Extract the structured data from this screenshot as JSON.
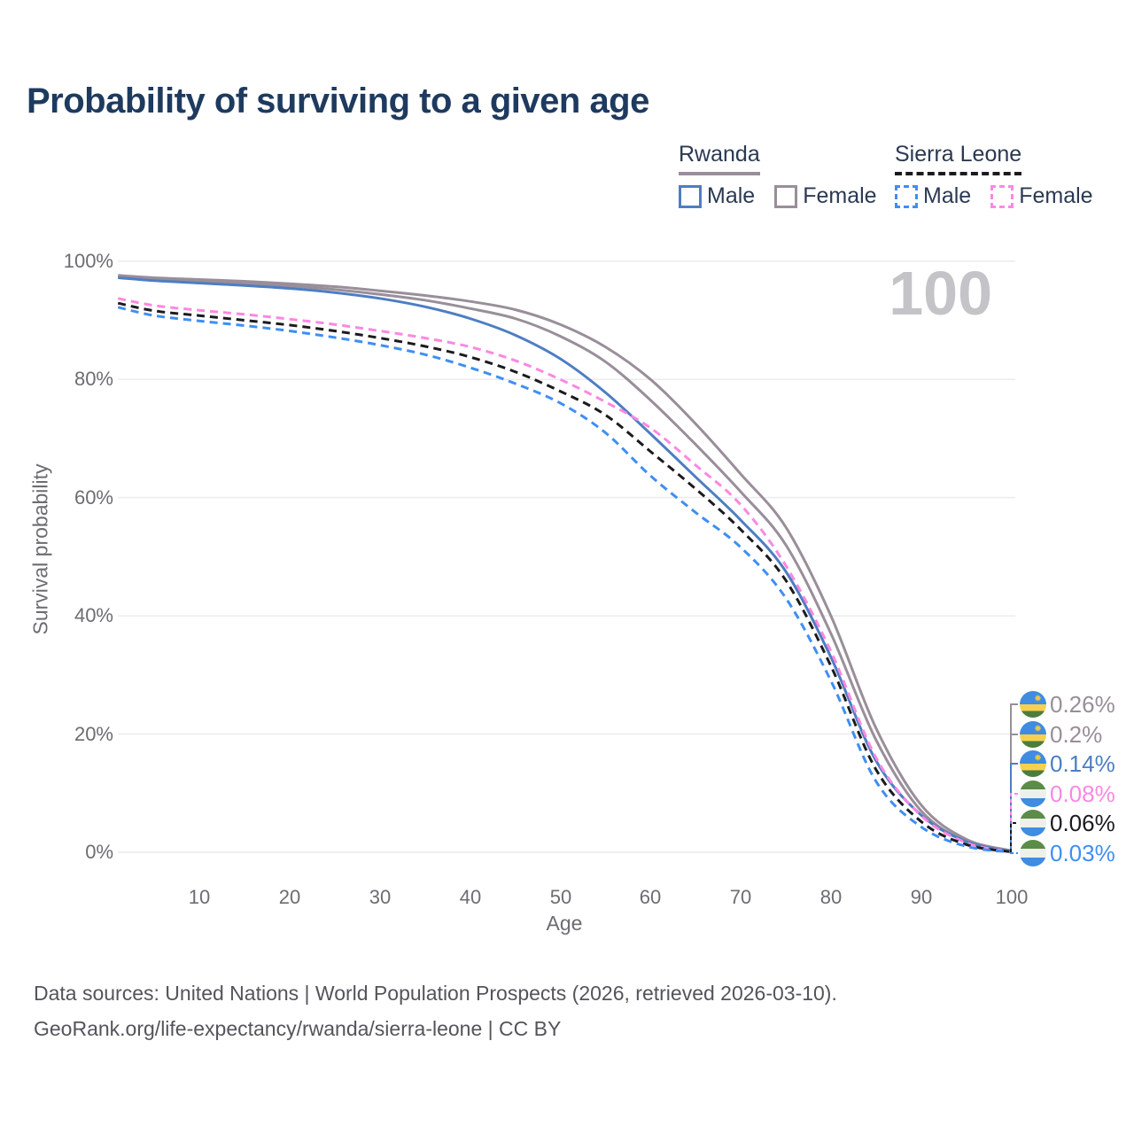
{
  "title": "Probability of surviving to a given age",
  "legend": {
    "groups": [
      {
        "country": "Rwanda",
        "underline_color": "#998e99",
        "underline_style": "solid",
        "items": [
          {
            "label": "Male",
            "color": "#4d7ec3",
            "dashed": false
          },
          {
            "label": "Female",
            "color": "#998e99",
            "dashed": false
          }
        ]
      },
      {
        "country": "Sierra Leone",
        "underline_color": "#1b1b1f",
        "underline_style": "dashed",
        "items": [
          {
            "label": "Male",
            "color": "#3f8ef3",
            "dashed": true
          },
          {
            "label": "Female",
            "color": "#fb88e2",
            "dashed": true
          }
        ]
      }
    ]
  },
  "watermark_age": "100",
  "axes": {
    "y_label": "Survival probability",
    "x_label": "Age",
    "y_ticks": [
      "100%",
      "80%",
      "60%",
      "40%",
      "20%",
      "0%"
    ],
    "x_ticks": [
      "10",
      "20",
      "30",
      "40",
      "50",
      "60",
      "70",
      "80",
      "90",
      "100"
    ]
  },
  "end_labels": [
    {
      "value": "0.26%",
      "flag": "rwanda",
      "color": "#998e99"
    },
    {
      "value": "0.2%",
      "flag": "rwanda",
      "color": "#998e99"
    },
    {
      "value": "0.14%",
      "flag": "rwanda",
      "color": "#4d7ec3"
    },
    {
      "value": "0.08%",
      "flag": "sierra-leone",
      "color": "#fb88e2"
    },
    {
      "value": "0.06%",
      "flag": "sierra-leone",
      "color": "#1b1b1f"
    },
    {
      "value": "0.03%",
      "flag": "sierra-leone",
      "color": "#3f8ef3"
    }
  ],
  "footer": {
    "line1": "Data sources: United Nations | World Population Prospects (2026, retrieved 2026-03-10).",
    "line2": "GeoRank.org/life-expectancy/rwanda/sierra-leone | CC BY"
  },
  "chart_data": {
    "type": "line",
    "title": "Probability of surviving to a given age",
    "xlabel": "Age",
    "ylabel": "Survival probability",
    "xlim": [
      0,
      100
    ],
    "ylim": [
      0,
      100
    ],
    "grid": "horizontal",
    "grid_percents": [
      100,
      80,
      60,
      40,
      20,
      0
    ],
    "legend_position": "top-right",
    "x": [
      1,
      5,
      10,
      15,
      20,
      25,
      30,
      35,
      40,
      45,
      50,
      55,
      60,
      65,
      70,
      75,
      80,
      85,
      90,
      95,
      100
    ],
    "series": [
      {
        "name": "Rwanda Female",
        "country": "Rwanda",
        "sex": "Female",
        "color": "#998e99",
        "dashed": false,
        "end_label": "0.26%",
        "values": [
          97.6,
          97.2,
          96.9,
          96.6,
          96.2,
          95.7,
          95.0,
          94.2,
          93.2,
          91.8,
          89.3,
          85.5,
          80.0,
          72.5,
          64.0,
          55.0,
          40.0,
          21.0,
          8.0,
          2.2,
          0.26
        ]
      },
      {
        "name": "Rwanda Both sexes",
        "country": "Rwanda",
        "sex": "Both",
        "color": "#998e99",
        "dashed": false,
        "end_label": "0.2%",
        "values": [
          97.4,
          96.9,
          96.6,
          96.2,
          95.8,
          95.2,
          94.4,
          93.4,
          92.0,
          90.3,
          87.3,
          83.0,
          76.5,
          69.0,
          61.0,
          52.0,
          37.0,
          19.0,
          7.0,
          1.9,
          0.2
        ]
      },
      {
        "name": "Rwanda Male",
        "country": "Rwanda",
        "sex": "Male",
        "color": "#4d7ec3",
        "dashed": false,
        "end_label": "0.14%",
        "values": [
          97.2,
          96.7,
          96.3,
          95.9,
          95.4,
          94.7,
          93.7,
          92.3,
          90.3,
          87.5,
          83.5,
          77.8,
          70.8,
          63.5,
          56.2,
          47.5,
          33.0,
          15.5,
          6.3,
          1.8,
          0.14
        ]
      },
      {
        "name": "Sierra Leone Female",
        "country": "Sierra Leone",
        "sex": "Female",
        "color": "#fb88e2",
        "dashed": true,
        "end_label": "0.08%",
        "values": [
          93.7,
          92.5,
          91.7,
          91.0,
          90.2,
          89.3,
          88.2,
          87.0,
          85.5,
          83.2,
          80.0,
          76.2,
          71.8,
          65.5,
          58.8,
          48.5,
          34.0,
          16.0,
          6.2,
          1.6,
          0.08
        ]
      },
      {
        "name": "Sierra Leone Both sexes",
        "country": "Sierra Leone",
        "sex": "Both",
        "color": "#1b1b1f",
        "dashed": true,
        "end_label": "0.06%",
        "values": [
          92.9,
          91.6,
          90.8,
          90.0,
          89.2,
          88.2,
          87.0,
          85.6,
          83.8,
          81.3,
          78.0,
          74.0,
          67.8,
          61.5,
          54.6,
          46.0,
          31.5,
          14.0,
          5.2,
          1.3,
          0.06
        ]
      },
      {
        "name": "Sierra Leone Male",
        "country": "Sierra Leone",
        "sex": "Male",
        "color": "#3f8ef3",
        "dashed": true,
        "end_label": "0.03%",
        "values": [
          92.2,
          90.8,
          89.9,
          89.1,
          88.2,
          87.1,
          85.8,
          84.2,
          82.0,
          79.3,
          76.0,
          71.0,
          63.7,
          57.5,
          51.6,
          43.0,
          29.0,
          12.0,
          4.3,
          1.0,
          0.03
        ]
      }
    ]
  }
}
